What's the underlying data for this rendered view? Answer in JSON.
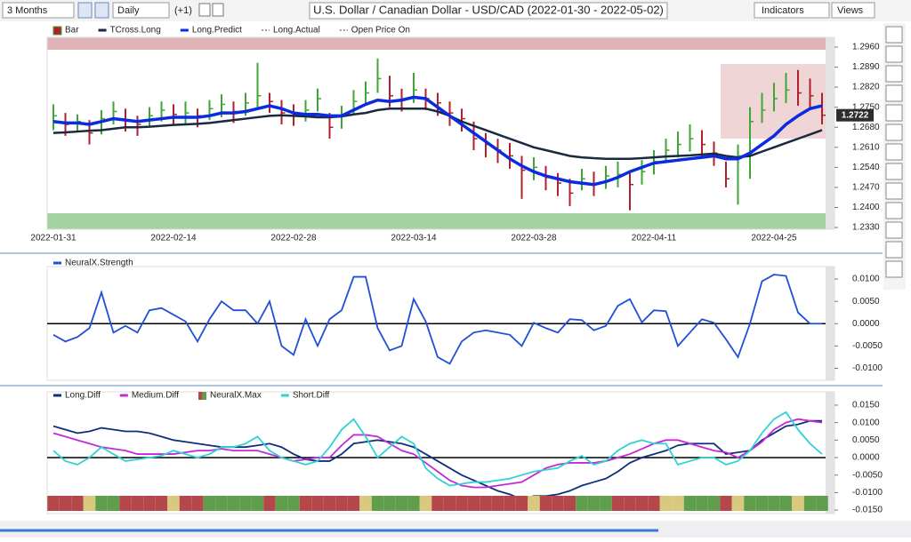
{
  "toolbar": {
    "period": "3 Months",
    "interval": "Daily",
    "offset": "(+1)",
    "title": "U.S. Dollar / Canadian Dollar - USD/CAD (2022-01-30 - 2022-05-02)",
    "indicators": "Indicators",
    "views": "Views"
  },
  "chart_data": [
    {
      "type": "ohlc",
      "categories": [
        "2022-01-31",
        null,
        null,
        null,
        null,
        null,
        null,
        null,
        null,
        null,
        "2022-02-14",
        null,
        null,
        null,
        null,
        null,
        null,
        null,
        null,
        null,
        "2022-02-28",
        null,
        null,
        null,
        null,
        null,
        null,
        null,
        null,
        null,
        "2022-03-14",
        null,
        null,
        null,
        null,
        null,
        null,
        null,
        null,
        null,
        "2022-03-28",
        null,
        null,
        null,
        null,
        null,
        null,
        null,
        null,
        null,
        "2022-04-11",
        null,
        null,
        null,
        null,
        null,
        null,
        null,
        null,
        null,
        "2022-04-25",
        null,
        null,
        null,
        null
      ],
      "bars": {
        "name": "Bar",
        "up_color": "#3fa535",
        "down_color": "#b0202a",
        "high": [
          1.276,
          1.273,
          1.2725,
          1.2705,
          1.274,
          1.277,
          1.2745,
          1.272,
          1.275,
          1.277,
          1.276,
          1.277,
          1.2745,
          1.2775,
          1.2795,
          1.277,
          1.28,
          1.2905,
          1.28,
          1.2775,
          1.276,
          1.2775,
          1.2815,
          1.273,
          1.2755,
          1.281,
          1.284,
          1.292,
          1.286,
          1.2815,
          1.287,
          1.2815,
          1.28,
          1.277,
          1.2745,
          1.27,
          1.266,
          1.264,
          1.2625,
          1.258,
          1.2575,
          1.2545,
          1.252,
          1.25,
          1.2535,
          1.2525,
          1.2545,
          1.256,
          1.2525,
          1.2565,
          1.26,
          1.264,
          1.2665,
          1.269,
          1.267,
          1.263,
          1.256,
          1.262,
          1.275,
          1.28,
          1.2835,
          1.287,
          1.288,
          1.285,
          1.28
        ],
        "low": [
          1.267,
          1.265,
          1.2665,
          1.262,
          1.2655,
          1.269,
          1.2665,
          1.265,
          1.268,
          1.27,
          1.269,
          1.269,
          1.268,
          1.2705,
          1.2715,
          1.2695,
          1.272,
          1.2745,
          1.273,
          1.269,
          1.2685,
          1.27,
          1.2735,
          1.264,
          1.2675,
          1.2725,
          1.2755,
          1.28,
          1.275,
          1.2735,
          1.2765,
          1.274,
          1.272,
          1.2685,
          1.2665,
          1.26,
          1.2575,
          1.2555,
          1.2535,
          1.243,
          1.2495,
          1.246,
          1.244,
          1.2405,
          1.246,
          1.244,
          1.2465,
          1.247,
          1.239,
          1.248,
          1.2515,
          1.2555,
          1.2575,
          1.2595,
          1.2575,
          1.2545,
          1.247,
          1.241,
          1.25,
          1.2695,
          1.2735,
          1.2765,
          1.2755,
          1.2745,
          1.269
        ],
        "close": [
          1.272,
          1.269,
          1.27,
          1.266,
          1.271,
          1.2735,
          1.2705,
          1.269,
          1.272,
          1.274,
          1.2725,
          1.273,
          1.272,
          1.2745,
          1.276,
          1.2735,
          1.2765,
          1.279,
          1.277,
          1.273,
          1.2725,
          1.274,
          1.278,
          1.268,
          1.272,
          1.277,
          1.28,
          1.285,
          1.279,
          1.2775,
          1.281,
          1.278,
          1.2765,
          1.273,
          1.271,
          1.264,
          1.262,
          1.26,
          1.258,
          1.253,
          1.254,
          1.2505,
          1.2485,
          1.245,
          1.25,
          1.248,
          1.251,
          1.2515,
          1.248,
          1.2525,
          1.256,
          1.26,
          1.262,
          1.264,
          1.262,
          1.259,
          1.25,
          1.258,
          1.27,
          1.274,
          1.278,
          1.281,
          1.28,
          1.279,
          1.2722
        ]
      },
      "series": [
        {
          "name": "TCross.Long",
          "color": "#1b2940",
          "values": [
            1.266,
            1.2662,
            1.2665,
            1.2668,
            1.267,
            1.2675,
            1.268,
            1.268,
            1.2682,
            1.2685,
            1.2688,
            1.269,
            1.2692,
            1.2695,
            1.27,
            1.2705,
            1.271,
            1.2715,
            1.272,
            1.2722,
            1.272,
            1.2718,
            1.2715,
            1.2715,
            1.2718,
            1.2725,
            1.273,
            1.274,
            1.2745,
            1.2745,
            1.2745,
            1.2745,
            1.2735,
            1.272,
            1.27,
            1.2685,
            1.267,
            1.2655,
            1.264,
            1.2625,
            1.261,
            1.26,
            1.259,
            1.258,
            1.2575,
            1.2572,
            1.257,
            1.257,
            1.257,
            1.2572,
            1.2575,
            1.2578,
            1.258,
            1.2582,
            1.2585,
            1.2588,
            1.258,
            1.2575,
            1.258,
            1.2595,
            1.261,
            1.2625,
            1.264,
            1.2655,
            1.267
          ]
        },
        {
          "name": "Long.Predict",
          "color": "#0a2be0",
          "values": [
            1.27,
            1.2695,
            1.2695,
            1.269,
            1.27,
            1.271,
            1.2705,
            1.27,
            1.2705,
            1.271,
            1.2715,
            1.2715,
            1.2715,
            1.272,
            1.273,
            1.273,
            1.2735,
            1.2745,
            1.2755,
            1.2745,
            1.273,
            1.2725,
            1.2725,
            1.272,
            1.272,
            1.274,
            1.276,
            1.2775,
            1.277,
            1.2775,
            1.2785,
            1.278,
            1.275,
            1.272,
            1.269,
            1.266,
            1.263,
            1.26,
            1.257,
            1.2545,
            1.2525,
            1.251,
            1.25,
            1.249,
            1.2485,
            1.248,
            1.249,
            1.2505,
            1.2525,
            1.254,
            1.2555,
            1.256,
            1.2565,
            1.257,
            1.2575,
            1.258,
            1.257,
            1.257,
            1.259,
            1.262,
            1.265,
            1.269,
            1.272,
            1.2745,
            1.2755
          ]
        },
        {
          "name": "Long.Actual",
          "color": "#3a3a3a"
        },
        {
          "name": "Open Price On",
          "color": "#333333"
        }
      ],
      "last_price": 1.2722,
      "ylim": [
        1.2324,
        1.2994
      ],
      "yticks": [
        {
          "value": 1.296,
          "label": "1.2960"
        },
        {
          "value": 1.289,
          "label": "1.2890"
        },
        {
          "value": 1.282,
          "label": "1.2820"
        },
        {
          "value": 1.275,
          "label": "1.2750"
        },
        {
          "value": 1.268,
          "label": "1.2680"
        },
        {
          "value": 1.261,
          "label": "1.2610"
        },
        {
          "value": 1.254,
          "label": "1.2540"
        },
        {
          "value": 1.247,
          "label": "1.2470"
        },
        {
          "value": 1.24,
          "label": "1.2400"
        },
        {
          "value": 1.233,
          "label": "1.2330"
        }
      ]
    },
    {
      "type": "line",
      "series": [
        {
          "name": "NeuralX.Strength",
          "color": "#1f4fd8",
          "values": [
            -0.0025,
            -0.004,
            -0.003,
            -0.001,
            0.007,
            -0.002,
            -0.0005,
            -0.002,
            0.003,
            0.0035,
            0.002,
            0.0005,
            -0.004,
            0.001,
            0.005,
            0.003,
            0.003,
            0,
            0.005,
            -0.005,
            -0.007,
            0.001,
            -0.005,
            0.001,
            0.003,
            0.0105,
            0.0105,
            -0.001,
            -0.006,
            -0.005,
            0.0055,
            0.0005,
            -0.0075,
            -0.009,
            -0.004,
            -0.002,
            -0.0015,
            -0.002,
            -0.0025,
            -0.005,
            0.0002,
            -0.001,
            -0.002,
            0.001,
            0.0008,
            -0.0015,
            -0.0005,
            0.004,
            0.0055,
            0.0003,
            0.003,
            0.0028,
            -0.005,
            -0.002,
            0.001,
            0.0002,
            -0.0035,
            -0.0075,
            0,
            0.0095,
            0.011,
            0.0107,
            0.0025,
            0,
            0
          ]
        }
      ],
      "ylim": [
        -0.0127,
        0.0128
      ],
      "yticks": [
        {
          "value": 0.01,
          "label": "0.0100"
        },
        {
          "value": 0.005,
          "label": "0.0050"
        },
        {
          "value": 0,
          "label": "0.0000"
        },
        {
          "value": -0.005,
          "label": "-0.0050"
        },
        {
          "value": -0.01,
          "label": "-0.0100"
        }
      ]
    },
    {
      "type": "line",
      "series": [
        {
          "name": "Long.Diff",
          "color": "#0f2f7a",
          "values": [
            0.009,
            0.008,
            0.007,
            0.0075,
            0.0085,
            0.008,
            0.0075,
            0.0075,
            0.007,
            0.006,
            0.005,
            0.0045,
            0.004,
            0.0035,
            0.003,
            0.003,
            0.003,
            0.0035,
            0.004,
            0.003,
            0.001,
            -0.0005,
            -0.001,
            -0.001,
            0.001,
            0.004,
            0.0045,
            0.005,
            0.0045,
            0.004,
            0.003,
            0.001,
            -0.001,
            -0.003,
            -0.005,
            -0.0065,
            -0.008,
            -0.0095,
            -0.0105,
            -0.012,
            -0.011,
            -0.011,
            -0.0105,
            -0.0095,
            -0.008,
            -0.007,
            -0.006,
            -0.004,
            -0.0015,
            0,
            0.001,
            0.002,
            0.0035,
            0.004,
            0.004,
            0.004,
            0.001,
            0.0015,
            0.002,
            0.005,
            0.007,
            0.009,
            0.0095,
            0.0105,
            0.0105
          ]
        },
        {
          "name": "Medium.Diff",
          "color": "#c22ad6",
          "values": [
            0.007,
            0.006,
            0.005,
            0.004,
            0.003,
            0.0025,
            0.002,
            0.001,
            0.001,
            0.001,
            0.001,
            0.0015,
            0.002,
            0.002,
            0.0025,
            0.002,
            0.002,
            0.002,
            0.001,
            0,
            -0.001,
            -0.0005,
            0,
            0,
            0.0035,
            0.0065,
            0.0065,
            0.006,
            0.004,
            0.002,
            0.001,
            -0.0015,
            -0.004,
            -0.0065,
            -0.008,
            -0.0085,
            -0.0085,
            -0.008,
            -0.0075,
            -0.007,
            -0.005,
            -0.003,
            -0.002,
            -0.0015,
            -0.0015,
            -0.0015,
            -0.001,
            0,
            0.001,
            0.0025,
            0.004,
            0.005,
            0.005,
            0.004,
            0.003,
            0.002,
            0.0015,
            0,
            0.002,
            0.0045,
            0.008,
            0.01,
            0.011,
            0.0105,
            0.01
          ]
        },
        {
          "name": "NeuralX.Max",
          "colors": [
            "#b5474b",
            "#b5474b",
            "#b5474b",
            "#d8c97e",
            "#5f9e4a",
            "#5f9e4a",
            "#b5474b",
            "#b5474b",
            "#b5474b",
            "#b5474b",
            "#d8c97e",
            "#b5474b",
            "#b5474b",
            "#5f9e4a",
            "#5f9e4a",
            "#5f9e4a",
            "#5f9e4a",
            "#5f9e4a",
            "#b5474b",
            "#5f9e4a",
            "#5f9e4a",
            "#b5474b",
            "#b5474b",
            "#b5474b",
            "#b5474b",
            "#b5474b",
            "#d8c97e",
            "#5f9e4a",
            "#5f9e4a",
            "#5f9e4a",
            "#5f9e4a",
            "#d8c97e",
            "#b5474b",
            "#b5474b",
            "#b5474b",
            "#b5474b",
            "#b5474b",
            "#b5474b",
            "#b5474b",
            "#b5474b",
            "#d8c97e",
            "#b5474b",
            "#b5474b",
            "#b5474b",
            "#5f9e4a",
            "#5f9e4a",
            "#5f9e4a",
            "#b5474b",
            "#b5474b",
            "#b5474b",
            "#b5474b",
            "#d8c97e",
            "#d8c97e",
            "#5f9e4a",
            "#5f9e4a",
            "#5f9e4a",
            "#b5474b",
            "#d8c97e",
            "#5f9e4a",
            "#5f9e4a",
            "#5f9e4a",
            "#5f9e4a",
            "#d8c97e",
            "#5f9e4a",
            "#5f9e4a"
          ]
        },
        {
          "name": "Short.Diff",
          "color": "#2fd3d3",
          "values": [
            0.002,
            -0.001,
            -0.002,
            0,
            0.003,
            0.001,
            -0.001,
            -0.0005,
            0,
            0.0005,
            0.002,
            0.001,
            0,
            0.001,
            0.003,
            0.003,
            0.004,
            0.006,
            0.002,
            0,
            -0.001,
            -0.002,
            -0.001,
            0.003,
            0.008,
            0.011,
            0.006,
            0,
            0.003,
            0.006,
            0.004,
            -0.003,
            -0.006,
            -0.008,
            -0.0075,
            -0.007,
            -0.007,
            -0.0065,
            -0.006,
            -0.005,
            -0.004,
            -0.0035,
            -0.003,
            -0.001,
            0.0005,
            -0.002,
            -0.001,
            0.002,
            0.004,
            0.005,
            0.004,
            0.004,
            -0.002,
            -0.001,
            0,
            0,
            -0.002,
            -0.001,
            0.002,
            0.007,
            0.011,
            0.013,
            0.008,
            0.004,
            0.001
          ]
        }
      ],
      "ylim": [
        -0.016,
        0.0188
      ],
      "yticks": [
        {
          "value": 0.015,
          "label": "0.0150"
        },
        {
          "value": 0.01,
          "label": "0.0100"
        },
        {
          "value": 0.005,
          "label": "0.0050"
        },
        {
          "value": 0,
          "label": "0.0000"
        },
        {
          "value": -0.005,
          "label": "-0.0050"
        },
        {
          "value": -0.01,
          "label": "-0.0100"
        },
        {
          "value": -0.015,
          "label": "-0.0150"
        }
      ]
    }
  ]
}
